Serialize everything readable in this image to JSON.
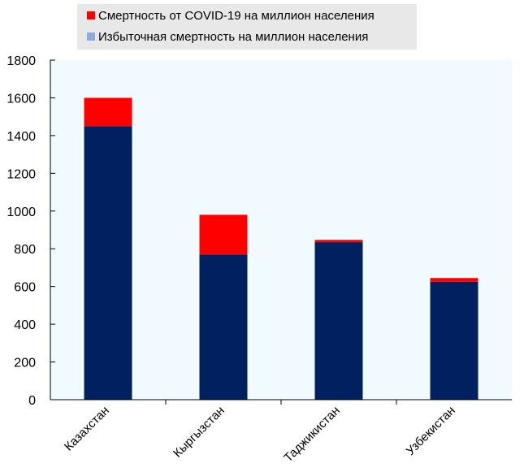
{
  "chart_data": {
    "type": "bar",
    "stacked": true,
    "categories": [
      "Казахстан",
      "Кыргызстан",
      "Таджикистан",
      "Узбекистан"
    ],
    "series": [
      {
        "name": "Избыточная смертность на миллион населения",
        "legend_color": "#8EA9DB",
        "color": "#002060",
        "values": [
          1450,
          770,
          835,
          625
        ]
      },
      {
        "name": "Смертность от COVID-19 на миллион населения",
        "color": "#FF0000",
        "values": [
          150,
          210,
          12,
          20
        ]
      }
    ],
    "legend": {
      "position": "top",
      "entries": [
        "Смертность от COVID-19 на миллион населения",
        "Избыточная смертность на миллион населения"
      ]
    },
    "ylim": [
      0,
      1800
    ],
    "yticks": [
      0,
      200,
      400,
      600,
      800,
      1000,
      1200,
      1400,
      1600,
      1800
    ],
    "xlabel": "",
    "ylabel": "",
    "title": "",
    "grid": false,
    "plot_background": "#F0FAFF",
    "legend_background": "#E8E8E8"
  }
}
